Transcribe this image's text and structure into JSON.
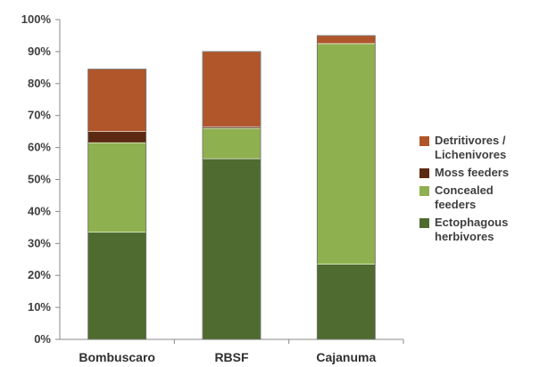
{
  "chart_data": {
    "type": "bar",
    "stacked": true,
    "categories": [
      "Bombuscaro",
      "RBSF",
      "Cajanuma"
    ],
    "series": [
      {
        "name": "Ectophagous herbivores",
        "color": "#4f6b2f",
        "values": [
          33.5,
          56.5,
          23.5
        ]
      },
      {
        "name": "Concealed feeders",
        "color": "#8fb04e",
        "values": [
          28.0,
          9.5,
          69.0
        ]
      },
      {
        "name": "Moss feeders",
        "color": "#5c2a12",
        "values": [
          3.5,
          0.5,
          0.0
        ]
      },
      {
        "name": "Detritivores / Lichenivores",
        "color": "#b0562a",
        "values": [
          19.5,
          23.5,
          2.5
        ]
      }
    ],
    "legend_labels": [
      "Detritivores /\nLichenivores",
      "Moss feeders",
      "Concealed\nfeeders",
      "Ectophagous\nherbivores"
    ],
    "legend_colors": [
      "#b0562a",
      "#5c2a12",
      "#8fb04e",
      "#4f6b2f"
    ],
    "y_ticks": [
      "0%",
      "10%",
      "20%",
      "30%",
      "40%",
      "50%",
      "60%",
      "70%",
      "80%",
      "90%",
      "100%"
    ],
    "ylim": [
      0,
      100
    ],
    "grid": false,
    "legend_position": "right"
  }
}
